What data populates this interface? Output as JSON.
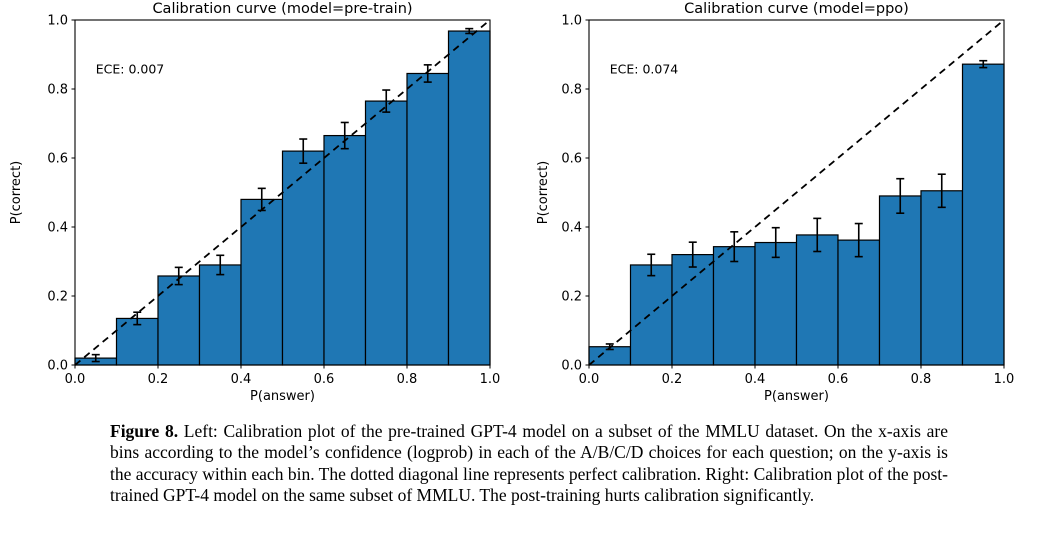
{
  "figure": {
    "caption_label": "Figure 8.",
    "caption_text": "Left: Calibration plot of the pre-trained GPT-4 model on a subset of the MMLU dataset. On the x-axis are bins according to the model’s confidence (logprob) in each of the A/B/C/D choices for each question; on the y-axis is the accuracy within each bin. The dotted diagonal line represents perfect calibration. Right: Calibration plot of the post-trained GPT-4 model on the same subset of MMLU. The post-training hurts calibration significantly."
  },
  "colors": {
    "bar_fill": "#1f77b4",
    "bar_edge": "#000000",
    "diagonal_line": "#000000",
    "axis": "#000000",
    "text": "#000000",
    "background": "#ffffff"
  },
  "chart_data": [
    {
      "type": "bar",
      "title": "Calibration curve (model=pre-train)",
      "annotation": "ECE: 0.007",
      "xlabel": "P(answer)",
      "ylabel": "P(correct)",
      "xlim": [
        0.0,
        1.0
      ],
      "ylim": [
        0.0,
        1.0
      ],
      "xticks": [
        0.0,
        0.2,
        0.4,
        0.6,
        0.8,
        1.0
      ],
      "yticks": [
        0.0,
        0.2,
        0.4,
        0.6,
        0.8,
        1.0
      ],
      "grid": false,
      "legend": "none",
      "diagonal_reference_line": true,
      "bin_edges": [
        0.0,
        0.1,
        0.2,
        0.3,
        0.4,
        0.5,
        0.6,
        0.7,
        0.8,
        0.9,
        1.0
      ],
      "bin_centers": [
        0.05,
        0.15,
        0.25,
        0.35,
        0.45,
        0.55,
        0.65,
        0.75,
        0.85,
        0.95
      ],
      "values": [
        0.02,
        0.135,
        0.258,
        0.29,
        0.48,
        0.62,
        0.665,
        0.765,
        0.845,
        0.968
      ],
      "errors": [
        0.01,
        0.018,
        0.025,
        0.028,
        0.032,
        0.035,
        0.038,
        0.032,
        0.025,
        0.007
      ]
    },
    {
      "type": "bar",
      "title": "Calibration curve (model=ppo)",
      "annotation": "ECE: 0.074",
      "xlabel": "P(answer)",
      "ylabel": "P(correct)",
      "xlim": [
        0.0,
        1.0
      ],
      "ylim": [
        0.0,
        1.0
      ],
      "xticks": [
        0.0,
        0.2,
        0.4,
        0.6,
        0.8,
        1.0
      ],
      "yticks": [
        0.0,
        0.2,
        0.4,
        0.6,
        0.8,
        1.0
      ],
      "grid": false,
      "legend": "none",
      "diagonal_reference_line": true,
      "bin_edges": [
        0.0,
        0.1,
        0.2,
        0.3,
        0.4,
        0.5,
        0.6,
        0.7,
        0.8,
        0.9,
        1.0
      ],
      "bin_centers": [
        0.05,
        0.15,
        0.25,
        0.35,
        0.45,
        0.55,
        0.65,
        0.75,
        0.85,
        0.95
      ],
      "values": [
        0.053,
        0.29,
        0.32,
        0.343,
        0.355,
        0.377,
        0.362,
        0.49,
        0.505,
        0.872
      ],
      "errors": [
        0.008,
        0.031,
        0.036,
        0.043,
        0.043,
        0.048,
        0.048,
        0.05,
        0.048,
        0.01
      ]
    }
  ]
}
